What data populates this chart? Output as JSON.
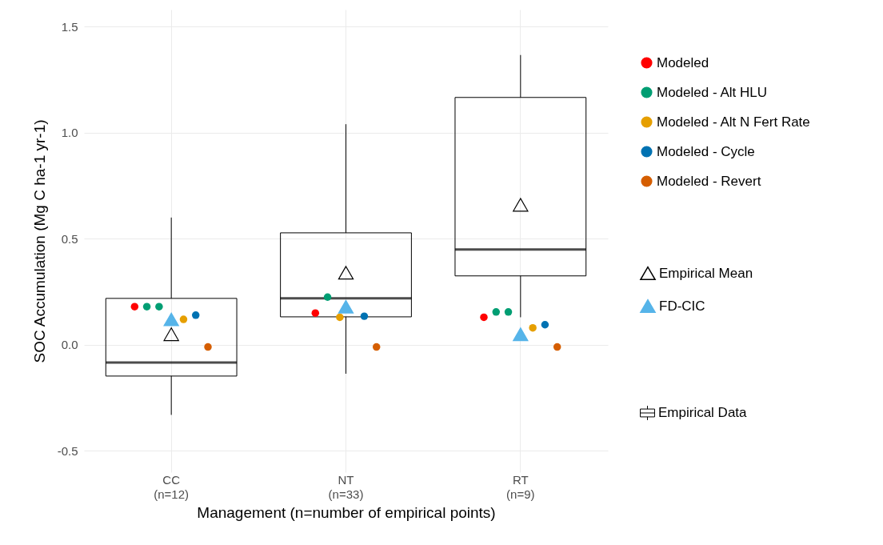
{
  "chart_data": {
    "type": "box",
    "xlabel": "Management (n=number of empirical points)",
    "ylabel": "SOC Accumulation (Mg C ha-1 yr-1)",
    "categories": [
      "CC\n(n=12)",
      "NT\n(n=33)",
      "RT\n(n=9)"
    ],
    "ylim": [
      -0.6,
      1.58
    ],
    "yticks": [
      -0.5,
      {
        "value": 0,
        "label": "0.0"
      },
      0.5,
      {
        "value": 1,
        "label": "1.0"
      },
      1.5
    ],
    "grid": true,
    "legend": "right",
    "series": [
      {
        "name": "Modeled",
        "type": "scatter",
        "marker": "circle",
        "color": "#ff0000",
        "x": [
          "CC\n(n=12)",
          "NT\n(n=33)",
          "RT\n(n=9)"
        ],
        "values": [
          0.18,
          0.15,
          0.13
        ]
      },
      {
        "name": "Modeled - Alt HLU",
        "type": "scatter",
        "marker": "circle",
        "color": "#009e73",
        "x": [
          "CC\n(n=12)",
          "CC\n(n=12)",
          "NT\n(n=33)",
          "RT\n(n=9)",
          "RT\n(n=9)"
        ],
        "values": [
          0.18,
          0.18,
          0.225,
          0.155,
          0.155
        ]
      },
      {
        "name": "Modeled - Alt N Fert Rate",
        "type": "scatter",
        "marker": "circle",
        "color": "#e69f00",
        "x": [
          "CC\n(n=12)",
          "NT\n(n=33)",
          "RT\n(n=9)"
        ],
        "values": [
          0.12,
          0.13,
          0.08
        ]
      },
      {
        "name": "Modeled - Cycle",
        "type": "scatter",
        "marker": "circle",
        "color": "#0072b2",
        "x": [
          "CC\n(n=12)",
          "NT\n(n=33)",
          "RT\n(n=9)"
        ],
        "values": [
          0.14,
          0.135,
          0.095
        ]
      },
      {
        "name": "Modeled - Revert",
        "type": "scatter",
        "marker": "circle",
        "color": "#d55e00",
        "x": [
          "CC\n(n=12)",
          "NT\n(n=33)",
          "RT\n(n=9)"
        ],
        "values": [
          -0.01,
          -0.01,
          -0.01
        ]
      },
      {
        "name": "Empirical Mean",
        "type": "scatter",
        "marker": "triangle",
        "color": "#000000",
        "x": [
          "CC\n(n=12)",
          "NT\n(n=33)",
          "RT\n(n=9)"
        ],
        "values": [
          0.05,
          0.34,
          0.66
        ]
      },
      {
        "name": "FD-CIC",
        "type": "scatter",
        "marker": "triangle",
        "color": "#56b4e9",
        "x": [
          "CC\n(n=12)",
          "NT\n(n=33)",
          "RT\n(n=9)"
        ],
        "values": [
          0.12,
          0.18,
          0.05
        ]
      },
      {
        "name": "Empirical Data",
        "color": "#000000",
        "boxes": [
          {
            "low": -0.33,
            "q1": -0.147,
            "median": -0.083,
            "q3": 0.219,
            "high": 0.6
          },
          {
            "low": -0.136,
            "q1": 0.132,
            "median": 0.219,
            "q3": 0.528,
            "high": 1.04
          },
          {
            "low": 0.13,
            "q1": 0.325,
            "median": 0.449,
            "q3": 1.166,
            "high": 1.366
          }
        ]
      }
    ]
  }
}
